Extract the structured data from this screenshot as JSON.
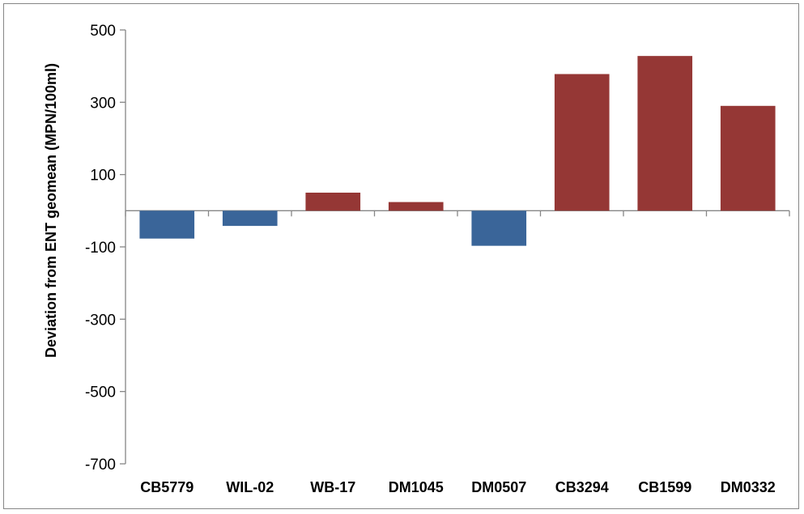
{
  "chart_data": {
    "type": "bar",
    "title": "",
    "xlabel": "",
    "ylabel": "Deviation from ENT geomean (MPN/100ml)",
    "ylim": [
      -700,
      500
    ],
    "yticks": [
      500,
      300,
      100,
      -100,
      -300,
      -500,
      -700
    ],
    "grid": false,
    "legend": "none",
    "categories": [
      "CB5779",
      "WIL-02",
      "WB-17",
      "DM1045",
      "DM0507",
      "CB3294",
      "CB1599",
      "DM0332"
    ],
    "values": [
      -77,
      -42,
      50,
      24,
      -97,
      378,
      428,
      290
    ],
    "colors": {
      "negative": "#3A6599",
      "positive": "#953735",
      "axis": "#868686"
    }
  }
}
